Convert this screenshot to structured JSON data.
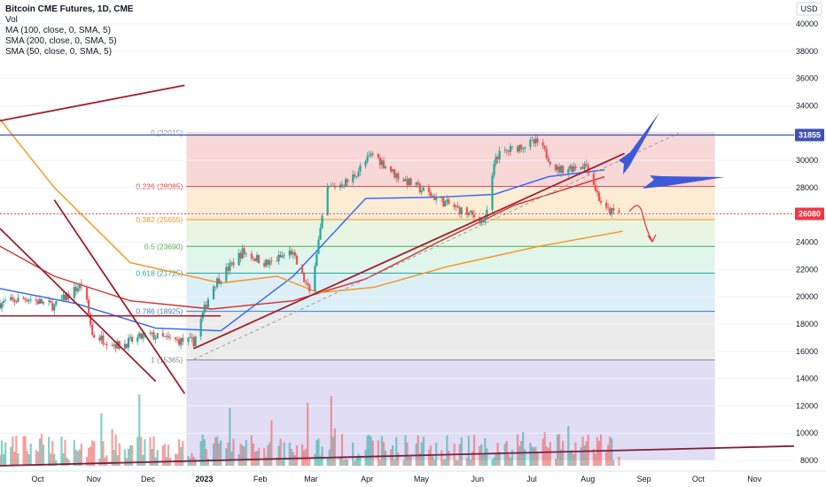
{
  "legend": {
    "title": "Bitcoin CME Futures, 1D, CME",
    "lines": [
      "Vol",
      "MA (100, close, 0, SMA, 5)",
      "SMA (200, close, 0, SMA, 5)",
      "SMA (50, close, 0, SMA, 5)"
    ]
  },
  "currency_label": "USD",
  "chart_data": {
    "type": "candlestick",
    "title": "Bitcoin CME Futures, 1D, CME",
    "y_axis": {
      "ticks": [
        8000,
        10000,
        12000,
        14000,
        16000,
        18000,
        20000,
        22000,
        24000,
        26000,
        28000,
        30000,
        32000,
        34000,
        36000,
        38000,
        40000
      ],
      "tick_labels": [
        "8000",
        "10000",
        "12000",
        "14000",
        "16000",
        "18000",
        "20000",
        "22000",
        "24000",
        "26000",
        "28000",
        "30000",
        "32000",
        "34000",
        "36000",
        "38000",
        "40000"
      ]
    },
    "x_axis": {
      "tick_labels": [
        "Oct",
        "Nov",
        "Dec",
        "2023",
        "Feb",
        "Mar",
        "Apr",
        "May",
        "Jun",
        "Jul",
        "Aug",
        "Sep",
        "Oct",
        "Nov"
      ],
      "tick_dates": [
        "2022-10-01",
        "2022-11-01",
        "2022-12-01",
        "2023-01-01",
        "2023-02-01",
        "2023-03-01",
        "2023-04-01",
        "2023-05-01",
        "2023-06-01",
        "2023-07-01",
        "2023-08-01",
        "2023-09-01",
        "2023-10-01",
        "2023-11-01"
      ]
    },
    "price_path": [
      [
        "2022-09-20",
        19500
      ],
      [
        "2022-10-05",
        19900
      ],
      [
        "2022-10-20",
        19300
      ],
      [
        "2022-11-05",
        21000
      ],
      [
        "2022-11-10",
        17200
      ],
      [
        "2022-11-25",
        16400
      ],
      [
        "2022-12-10",
        17200
      ],
      [
        "2022-12-25",
        16800
      ],
      [
        "2023-01-05",
        16700
      ],
      [
        "2023-01-15",
        20700
      ],
      [
        "2023-02-01",
        23300
      ],
      [
        "2023-02-15",
        22400
      ],
      [
        "2023-02-28",
        23300
      ],
      [
        "2023-03-10",
        20300
      ],
      [
        "2023-03-20",
        27900
      ],
      [
        "2023-04-01",
        28500
      ],
      [
        "2023-04-14",
        30500
      ],
      [
        "2023-04-26",
        29000
      ],
      [
        "2023-05-10",
        27900
      ],
      [
        "2023-05-25",
        26800
      ],
      [
        "2023-06-15",
        25500
      ],
      [
        "2023-06-21",
        30300
      ],
      [
        "2023-07-05",
        31100
      ],
      [
        "2023-07-14",
        31300
      ],
      [
        "2023-07-25",
        29300
      ],
      [
        "2023-08-10",
        29700
      ],
      [
        "2023-08-17",
        27200
      ],
      [
        "2023-08-21",
        26300
      ],
      [
        "2023-08-28",
        26100
      ]
    ],
    "moving_averages": [
      {
        "path": [
          [
            "2022-09-20",
            20600
          ],
          [
            "2022-11-01",
            19500
          ],
          [
            "2022-12-15",
            17700
          ],
          [
            "2023-01-20",
            17500
          ],
          [
            "2023-03-01",
            21500
          ],
          [
            "2023-04-10",
            27200
          ],
          [
            "2023-05-20",
            27300
          ],
          [
            "2023-06-20",
            27500
          ],
          [
            "2023-07-20",
            28800
          ],
          [
            "2023-08-20",
            29300
          ]
        ]
      },
      {
        "path": [
          [
            "2022-09-20",
            23700
          ],
          [
            "2022-10-20",
            21500
          ],
          [
            "2022-12-01",
            19700
          ],
          [
            "2023-01-15",
            19100
          ],
          [
            "2023-03-01",
            19700
          ],
          [
            "2023-04-10",
            21300
          ],
          [
            "2023-05-20",
            24000
          ],
          [
            "2023-07-01",
            26700
          ],
          [
            "2023-08-20",
            28800
          ]
        ]
      },
      {
        "path": [
          [
            "2022-09-20",
            33000
          ],
          [
            "2022-10-20",
            28000
          ],
          [
            "2022-12-01",
            22500
          ],
          [
            "2023-01-20",
            21000
          ],
          [
            "2023-02-20",
            21500
          ],
          [
            "2023-03-15",
            20300
          ],
          [
            "2023-04-15",
            20700
          ],
          [
            "2023-05-25",
            22200
          ],
          [
            "2023-07-15",
            23700
          ],
          [
            "2023-08-30",
            24800
          ]
        ]
      }
    ],
    "fib_levels": [
      {
        "label": "0 (32015)",
        "value": 32015
      },
      {
        "label": "0.236 (28085)",
        "value": 28085
      },
      {
        "label": "0.382 (25655)",
        "value": 25655
      },
      {
        "label": "0.5 (23690)",
        "value": 23690
      },
      {
        "label": "0.618 (21725)",
        "value": 21725
      },
      {
        "label": "0.786 (18925)",
        "value": 18925
      },
      {
        "label": "1 (15365)",
        "value": 15365
      }
    ],
    "fib_range": {
      "start": "2023-01-01",
      "end": "2023-10-20"
    },
    "price_badges": [
      {
        "label": "31855",
        "value": 31855,
        "color": "#3f51b5"
      },
      {
        "label": "26080",
        "value": 26080,
        "color": "#f23645"
      }
    ],
    "trend_lines": [
      {
        "from": [
          "2022-09-20",
          32900
        ],
        "to": [
          "2022-12-31",
          35500
        ]
      },
      {
        "from": [
          "2022-09-20",
          25000
        ],
        "to": [
          "2022-12-15",
          13800
        ]
      },
      {
        "from": [
          "2022-10-20",
          27100
        ],
        "to": [
          "2022-12-31",
          12900
        ]
      },
      {
        "from": [
          "2023-01-05",
          16200
        ],
        "to": [
          "2023-08-31",
          30500
        ]
      }
    ],
    "volume_bars": 230
  },
  "colors": {
    "up": "#26a69a",
    "down": "#ef5350",
    "ma100": "#2962ff",
    "sma200": "#d32f2f",
    "sma50": "#f7931a",
    "trendline": "#a31d2b",
    "arrow_blue": "#3d5bd9",
    "axis_text": "#131722"
  }
}
